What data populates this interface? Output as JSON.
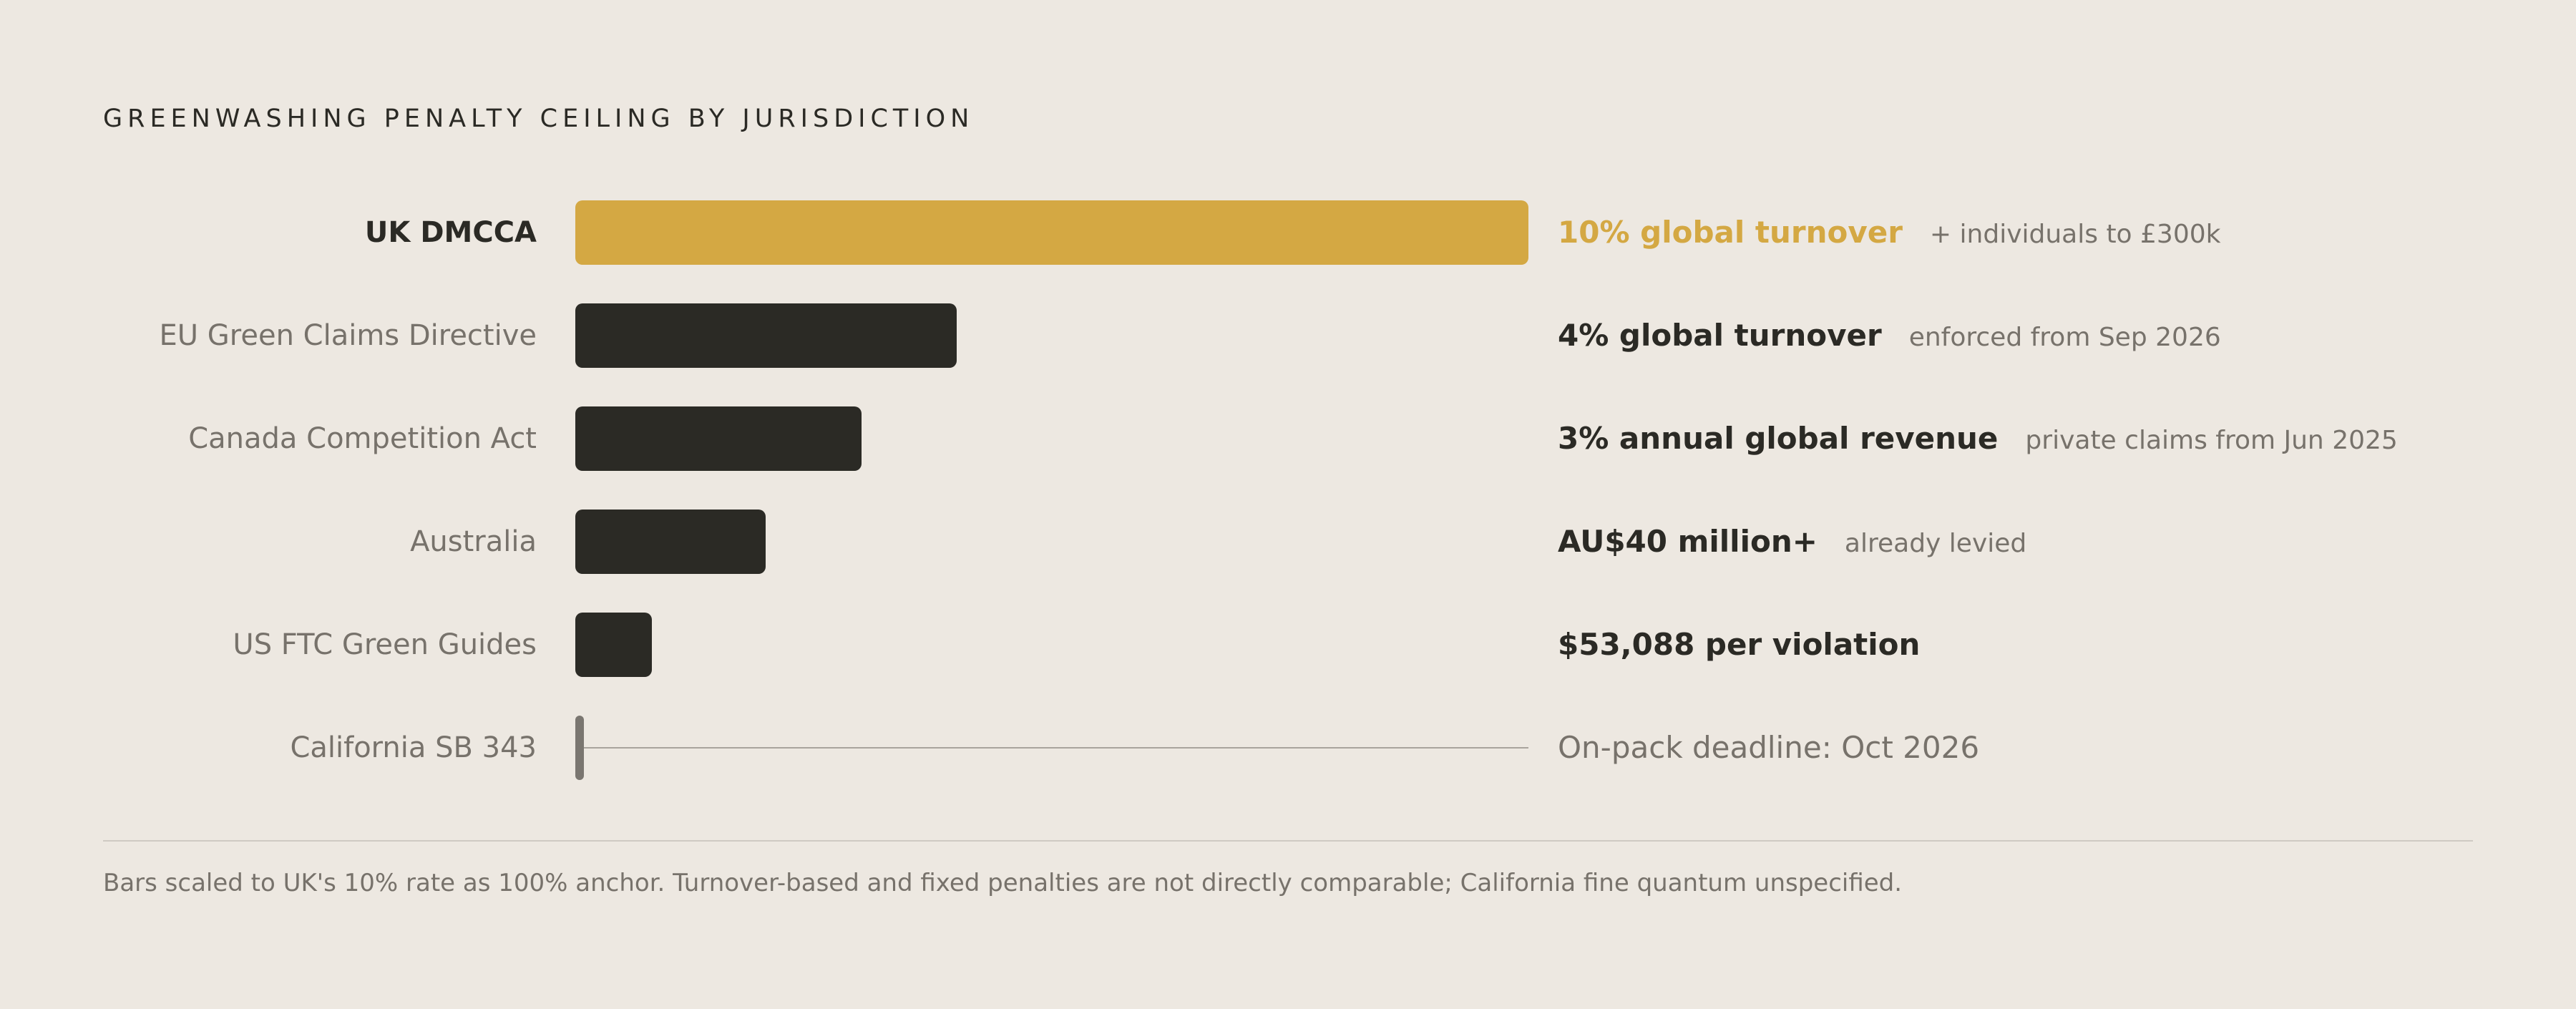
{
  "chart_data": {
    "type": "bar",
    "orientation": "horizontal",
    "title": "GREENWASHING PENALTY CEILING BY JURISDICTION",
    "categories": [
      "UK DMCCA",
      "EU Green Claims Directive",
      "Canada Competition Act",
      "Australia",
      "US FTC Green Guides",
      "California SB 343"
    ],
    "values": [
      100,
      40,
      30,
      20,
      8,
      0
    ],
    "value_labels": [
      "10% global turnover",
      "4% global turnover",
      "3% annual global revenue",
      "AU$40 million+",
      "$53,088 per violation",
      "On-pack deadline: Oct 2026"
    ],
    "notes": [
      "+ individuals to £300k",
      "enforced from Sep 2026",
      "private claims from Jun 2025",
      "already levied",
      "",
      ""
    ],
    "highlight_index": 0,
    "unspecified_index": 5,
    "xlim": [
      0,
      100
    ],
    "grid": false,
    "colors": {
      "highlight": "#d4a843",
      "bar": "#2b2a25",
      "muted_text": "#77726b",
      "background": "#ede8e1"
    },
    "footnote": "Bars scaled to UK's 10% rate as 100% anchor. Turnover-based and fixed penalties are not directly comparable; California fine quantum unspecified."
  }
}
